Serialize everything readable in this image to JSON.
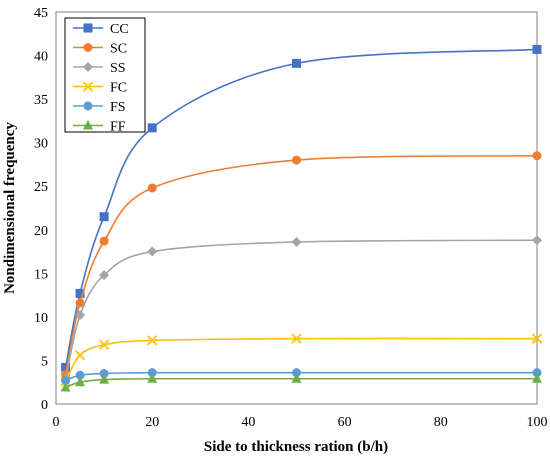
{
  "chart_data": {
    "type": "line",
    "title": "",
    "xlabel": "Side to thickness ration (b/h)",
    "ylabel": "Nondimensional frequency",
    "xlim": [
      0,
      100
    ],
    "ylim": [
      0,
      45
    ],
    "xticks": [
      0,
      20,
      40,
      60,
      80,
      100
    ],
    "yticks": [
      0,
      5,
      10,
      15,
      20,
      25,
      30,
      35,
      40,
      45
    ],
    "grid": false,
    "legend_position": "top-left",
    "x": [
      2,
      5,
      10,
      20,
      50,
      100
    ],
    "series": [
      {
        "name": "CC",
        "values": [
          4.2,
          12.7,
          21.5,
          31.7,
          39.1,
          40.7
        ],
        "color": "#4472c4",
        "marker": "square"
      },
      {
        "name": "SC",
        "values": [
          3.4,
          11.6,
          18.7,
          24.8,
          28.0,
          28.5
        ],
        "color": "#ed7d31",
        "marker": "circle"
      },
      {
        "name": "SS",
        "values": [
          2.8,
          10.2,
          14.8,
          17.5,
          18.6,
          18.8
        ],
        "color": "#a5a5a5",
        "marker": "diamond"
      },
      {
        "name": "FC",
        "values": [
          2.6,
          5.6,
          6.8,
          7.3,
          7.5,
          7.5
        ],
        "color": "#ffc000",
        "marker": "x"
      },
      {
        "name": "FS",
        "values": [
          2.7,
          3.3,
          3.5,
          3.6,
          3.6,
          3.6
        ],
        "color": "#5b9bd5",
        "marker": "circle"
      },
      {
        "name": "FF",
        "values": [
          1.9,
          2.5,
          2.8,
          2.9,
          2.9,
          2.9
        ],
        "color": "#70ad47",
        "marker": "triangle"
      }
    ]
  }
}
